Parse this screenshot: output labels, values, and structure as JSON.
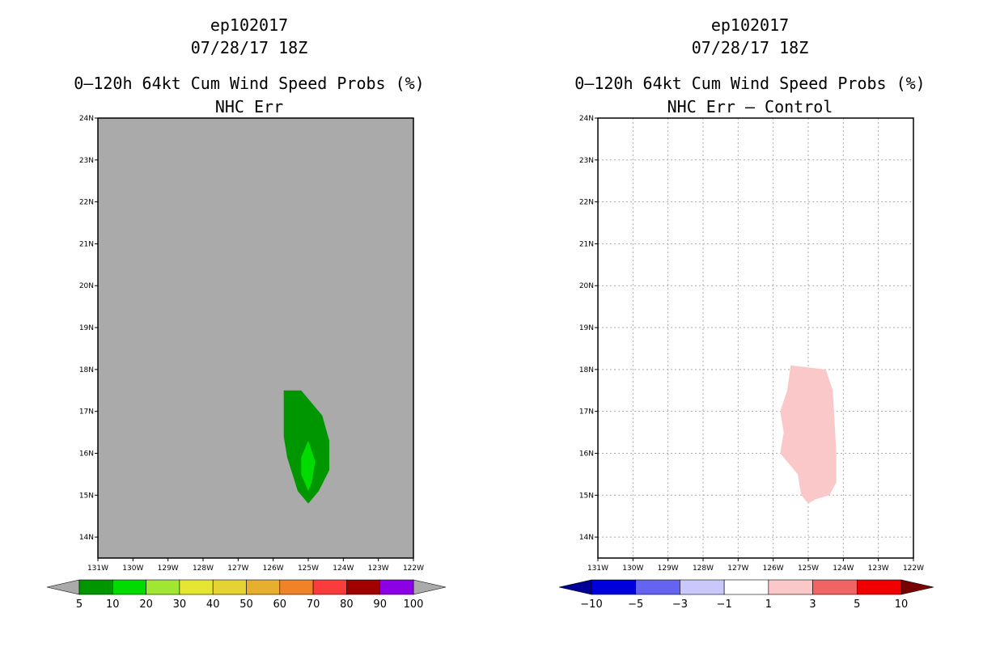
{
  "panels": [
    {
      "id": "left",
      "title_lines": [
        "ep102017",
        "07/28/17 18Z"
      ],
      "subtitle_lines": [
        "0–120h 64kt Cum Wind Speed Probs (%)",
        "NHC Err"
      ],
      "background": "#aaaaaa",
      "gridlines": false
    },
    {
      "id": "right",
      "title_lines": [
        "ep102017",
        "07/28/17 18Z"
      ],
      "subtitle_lines": [
        "0–120h 64kt Cum Wind Speed Probs (%)",
        "NHC Err – Control"
      ],
      "background": "#ffffff",
      "gridlines": true
    }
  ],
  "chart_data": [
    {
      "type": "heatmap",
      "title": "0–120h 64kt Cum Wind Speed Probs (%)",
      "subtitle": "NHC Err",
      "storm": "ep102017",
      "valid_time": "07/28/17 18Z",
      "x_ticks": [
        "131W",
        "130W",
        "129W",
        "128W",
        "127W",
        "126W",
        "125W",
        "124W",
        "123W",
        "122W"
      ],
      "y_ticks": [
        "14N",
        "15N",
        "16N",
        "17N",
        "18N",
        "19N",
        "20N",
        "21N",
        "22N",
        "23N",
        "24N"
      ],
      "xlim": [
        -131,
        -122
      ],
      "ylim": [
        13.5,
        24
      ],
      "contours": [
        {
          "level": "5-10",
          "color": "#009600",
          "polygon": [
            [
              -125.7,
              17.5
            ],
            [
              -125.2,
              17.5
            ],
            [
              -124.6,
              16.9
            ],
            [
              -124.4,
              16.3
            ],
            [
              -124.4,
              15.6
            ],
            [
              -124.7,
              15.1
            ],
            [
              -125.0,
              14.8
            ],
            [
              -125.3,
              15.1
            ],
            [
              -125.6,
              15.9
            ],
            [
              -125.7,
              16.4
            ],
            [
              -125.7,
              17.0
            ]
          ]
        },
        {
          "level": "10-20",
          "color": "#00dc00",
          "polygon": [
            [
              -125.0,
              16.3
            ],
            [
              -124.8,
              15.8
            ],
            [
              -124.9,
              15.3
            ],
            [
              -125.0,
              15.1
            ],
            [
              -125.2,
              15.5
            ],
            [
              -125.2,
              15.9
            ]
          ]
        }
      ],
      "legend": {
        "boundaries": [
          "5",
          "10",
          "20",
          "30",
          "40",
          "50",
          "60",
          "70",
          "80",
          "90",
          "100"
        ],
        "colors": [
          "#009600",
          "#00dc00",
          "#a0e632",
          "#e6e632",
          "#e6d232",
          "#e6af2d",
          "#f08228",
          "#fa3c3c",
          "#a00000",
          "#8c00e6"
        ],
        "end_colors": [
          "#aaaaaa",
          "#aaaaaa"
        ]
      }
    },
    {
      "type": "heatmap",
      "title": "0–120h 64kt Cum Wind Speed Probs (%)",
      "subtitle": "NHC Err – Control",
      "storm": "ep102017",
      "valid_time": "07/28/17 18Z",
      "x_ticks": [
        "131W",
        "130W",
        "129W",
        "128W",
        "127W",
        "126W",
        "125W",
        "124W",
        "123W",
        "122W"
      ],
      "y_ticks": [
        "14N",
        "15N",
        "16N",
        "17N",
        "18N",
        "19N",
        "20N",
        "21N",
        "22N",
        "23N",
        "24N"
      ],
      "xlim": [
        -131,
        -122
      ],
      "ylim": [
        13.5,
        24
      ],
      "contours": [
        {
          "level": "1-3",
          "color": "#fac8c8",
          "polygon": [
            [
              -125.5,
              18.1
            ],
            [
              -124.5,
              18.0
            ],
            [
              -124.3,
              17.5
            ],
            [
              -124.2,
              16.0
            ],
            [
              -124.2,
              15.3
            ],
            [
              -124.4,
              15.0
            ],
            [
              -124.8,
              14.9
            ],
            [
              -125.0,
              14.8
            ],
            [
              -125.2,
              15.0
            ],
            [
              -125.3,
              15.5
            ],
            [
              -125.8,
              16.0
            ],
            [
              -125.7,
              16.5
            ],
            [
              -125.8,
              17.0
            ],
            [
              -125.6,
              17.5
            ]
          ]
        }
      ],
      "legend": {
        "boundaries": [
          "−10",
          "−5",
          "−3",
          "−1",
          "1",
          "3",
          "5",
          "10"
        ],
        "colors": [
          "#0000dc",
          "#6464f0",
          "#c8c8fa",
          "#ffffff",
          "#fac8c8",
          "#f06464",
          "#f00000"
        ],
        "end_colors": [
          "#000096",
          "#780000"
        ]
      }
    }
  ]
}
